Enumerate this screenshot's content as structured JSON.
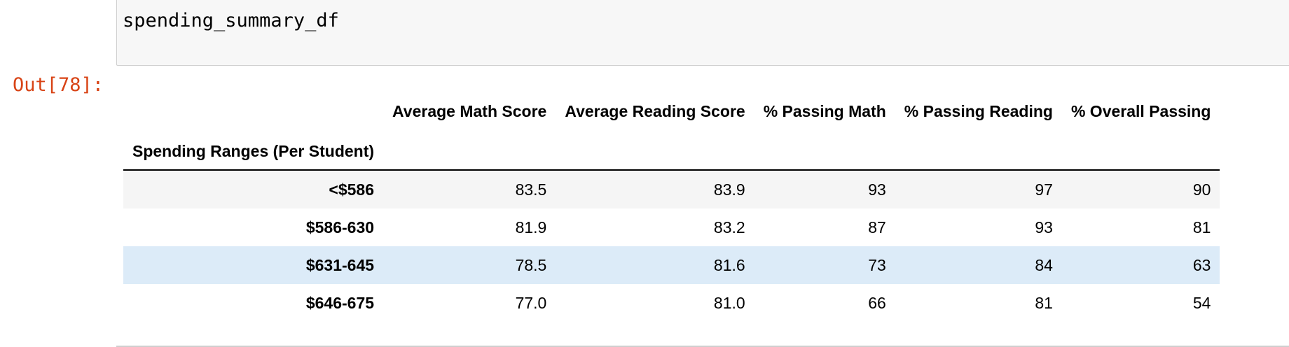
{
  "input_cell": {
    "code": "spending_summary_df"
  },
  "output": {
    "prompt": "Out[78]:",
    "table": {
      "columns": [
        "Average Math Score",
        "Average Reading Score",
        "% Passing Math",
        "% Passing Reading",
        "% Overall Passing"
      ],
      "index_name": "Spending Ranges (Per Student)",
      "rows": [
        {
          "index": "<$586",
          "values": [
            "83.5",
            "83.9",
            "93",
            "97",
            "90"
          ]
        },
        {
          "index": "$586-630",
          "values": [
            "81.9",
            "83.2",
            "87",
            "93",
            "81"
          ]
        },
        {
          "index": "$631-645",
          "values": [
            "78.5",
            "81.6",
            "73",
            "84",
            "63"
          ]
        },
        {
          "index": "$646-675",
          "values": [
            "77.0",
            "81.0",
            "66",
            "81",
            "54"
          ]
        }
      ]
    }
  },
  "colors": {
    "prompt_out": "#d84315",
    "row_stripe": "#f5f5f5",
    "row_hover": "#dcebf8",
    "input_bg": "#f7f7f7"
  }
}
